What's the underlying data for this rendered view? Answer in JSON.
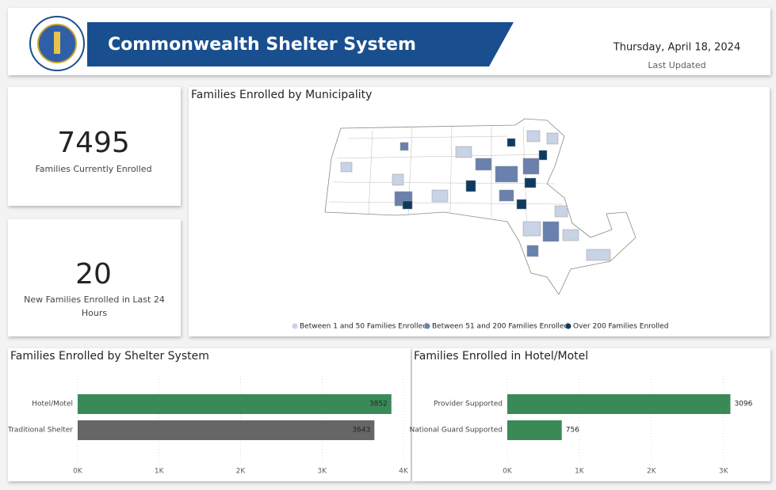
{
  "header": {
    "title": "Commonwealth Shelter System",
    "date": "Thursday, April 18, 2024",
    "date_label": "Last Updated"
  },
  "kpis": [
    {
      "value": "7495",
      "label": "Families Currently Enrolled"
    },
    {
      "value": "20",
      "label": "New Families Enrolled in Last 24 Hours"
    }
  ],
  "map": {
    "title": "Families Enrolled by Municipality",
    "legend": [
      {
        "name": "Between 1 and 50 Families Enrolled",
        "color": "#c9d3e6"
      },
      {
        "name": "Between 51 and 200 Families Enrolled",
        "color": "#6a80ad"
      },
      {
        "name": "Over 200 Families Enrolled",
        "color": "#0e3a5f"
      }
    ]
  },
  "shelter_chart": {
    "type": "bar",
    "title": "Families Enrolled by Shelter System",
    "categories": [
      "Hotel/Motel",
      "Traditional Shelter"
    ],
    "values": [
      3852,
      3643
    ],
    "colors": [
      "#3a8a58",
      "#666666"
    ],
    "xlim": [
      0,
      4000
    ],
    "xticks": [
      {
        "value": 0,
        "label": "0K"
      },
      {
        "value": 1000,
        "label": "1K"
      },
      {
        "value": 2000,
        "label": "2K"
      },
      {
        "value": 3000,
        "label": "3K"
      },
      {
        "value": 4000,
        "label": "4K"
      }
    ],
    "grid": true
  },
  "hotel_chart": {
    "type": "bar",
    "title": "Families Enrolled in Hotel/Motel",
    "categories": [
      "Provider Supported",
      "National Guard Supported"
    ],
    "values": [
      3096,
      756
    ],
    "colors": [
      "#3a8a58",
      "#3a8a58"
    ],
    "xlim": [
      0,
      3300
    ],
    "xticks": [
      {
        "value": 0,
        "label": "0K"
      },
      {
        "value": 1000,
        "label": "1K"
      },
      {
        "value": 2000,
        "label": "2K"
      },
      {
        "value": 3000,
        "label": "3K"
      }
    ],
    "grid": true
  }
}
